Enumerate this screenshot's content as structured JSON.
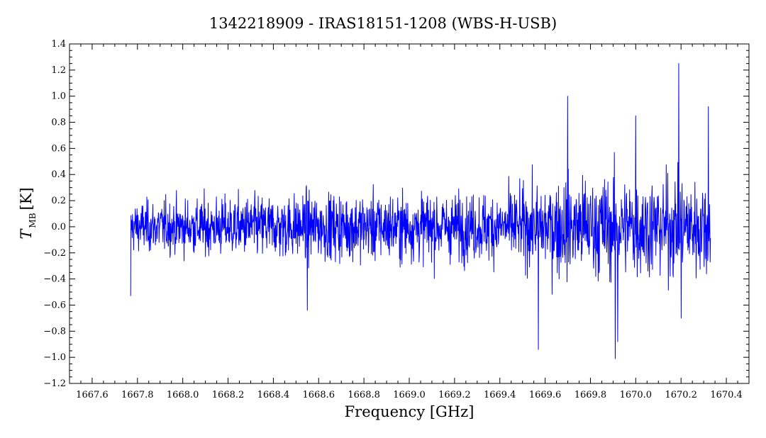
{
  "chart_data": {
    "type": "line",
    "title": "1342218909 - IRAS18151-1208 (WBS-H-USB)",
    "xlabel": "Frequency [GHz]",
    "ylabel_main": "T",
    "ylabel_sub": "MB",
    "ylabel_unit": "[K]",
    "xlim": [
      1667.5,
      1670.5
    ],
    "ylim": [
      -1.2,
      1.4
    ],
    "xticks": [
      1667.6,
      1667.8,
      1668.0,
      1668.2,
      1668.4,
      1668.6,
      1668.8,
      1669.0,
      1669.2,
      1669.4,
      1669.6,
      1669.8,
      1670.0,
      1670.2,
      1670.4
    ],
    "xtick_labels": [
      "1667.6",
      "1667.8",
      "1668.0",
      "1668.2",
      "1668.4",
      "1668.6",
      "1668.8",
      "1669.0",
      "1669.2",
      "1669.4",
      "1669.6",
      "1669.8",
      "1670.0",
      "1670.2",
      "1670.4"
    ],
    "yticks": [
      -1.2,
      -1.0,
      -0.8,
      -0.6,
      -0.4,
      -0.2,
      0.0,
      0.2,
      0.4,
      0.6,
      0.8,
      1.0,
      1.2,
      1.4
    ],
    "ytick_labels": [
      "−1.2",
      "−1.0",
      "−0.8",
      "−0.6",
      "−0.4",
      "−0.2",
      "0.0",
      "0.2",
      "0.4",
      "0.6",
      "0.8",
      "1.0",
      "1.2",
      "1.4"
    ],
    "grid": false,
    "series": [
      {
        "color": "#0000ff",
        "x_start": 1667.77,
        "x_end": 1670.33,
        "noise_profile": [
          {
            "x": 1667.77,
            "y_low": -0.53,
            "y_high": 0.27
          },
          {
            "x": 1668.0,
            "y_low": -0.45,
            "y_high": 0.45
          },
          {
            "x": 1668.55,
            "y_low": -0.64,
            "y_high": 0.45
          },
          {
            "x": 1669.0,
            "y_low": -0.5,
            "y_high": 0.62
          },
          {
            "x": 1669.3,
            "y_low": -0.53,
            "y_high": 0.55
          },
          {
            "x": 1669.5,
            "y_low": -0.62,
            "y_high": 0.62
          },
          {
            "x": 1669.7,
            "y_low": -0.65,
            "y_high": 1.0
          },
          {
            "x": 1670.0,
            "y_low": -0.8,
            "y_high": 0.85
          },
          {
            "x": 1670.33,
            "y_low": -0.7,
            "y_high": 0.92
          }
        ],
        "extremes": [
          {
            "x": 1667.77,
            "y": -0.53
          },
          {
            "x": 1668.55,
            "y": -0.64
          },
          {
            "x": 1669.57,
            "y": -0.94
          },
          {
            "x": 1669.7,
            "y": 1.0
          },
          {
            "x": 1669.91,
            "y": -1.01
          },
          {
            "x": 1669.92,
            "y": -0.88
          },
          {
            "x": 1670.0,
            "y": 0.85
          },
          {
            "x": 1670.19,
            "y": 1.25
          },
          {
            "x": 1670.2,
            "y": -0.7
          },
          {
            "x": 1670.32,
            "y": 0.92
          }
        ]
      }
    ]
  }
}
